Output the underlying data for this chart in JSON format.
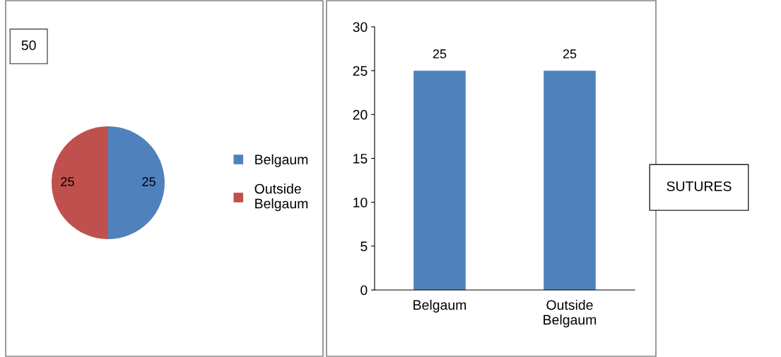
{
  "chart_data": [
    {
      "type": "pie",
      "categories": [
        "Belgaum",
        "Outside Belgaum"
      ],
      "values": [
        25,
        25
      ],
      "colors": [
        "#4f81bd",
        "#c0504d"
      ],
      "data_labels": true,
      "legend": "right",
      "annotations": [
        "50"
      ]
    },
    {
      "type": "bar",
      "categories": [
        "Belgaum",
        "Outside Belgaum"
      ],
      "values": [
        25,
        25
      ],
      "color": "#4f81bd",
      "ylim": [
        0,
        30
      ],
      "yticks": [
        0,
        5,
        10,
        15,
        20,
        25,
        30
      ],
      "data_labels": true,
      "grid": false,
      "legend": false,
      "annotations": [
        "SUTURES"
      ]
    }
  ]
}
